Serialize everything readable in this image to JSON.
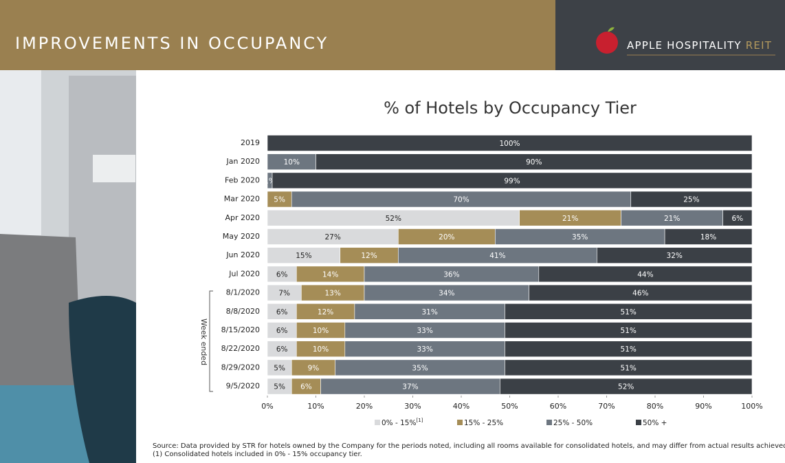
{
  "header": {
    "title": "IMPROVEMENTS IN OCCUPANCY",
    "brand": "APPLE HOSPITALITY",
    "brand_suffix": "REIT"
  },
  "chart_data": {
    "type": "stacked_bar_horizontal",
    "title": "% of Hotels by Occupancy Tier",
    "categories": [
      "2019",
      "Jan 2020",
      "Feb 2020",
      "Mar 2020",
      "Apr 2020",
      "May 2020",
      "Jun 2020",
      "Jul 2020",
      "8/1/2020",
      "8/8/2020",
      "8/15/2020",
      "8/22/2020",
      "8/29/2020",
      "9/5/2020"
    ],
    "group_label": "Week ended",
    "series": [
      {
        "name": "0% - 15%",
        "name_note": "[1]",
        "color": "#d9dadc",
        "label_color": "#222",
        "values": [
          null,
          null,
          null,
          null,
          52,
          27,
          15,
          6,
          7,
          6,
          6,
          6,
          5,
          5
        ],
        "value_labels": [
          null,
          null,
          null,
          null,
          "52%",
          "27%",
          "15%",
          "6%",
          "7%",
          "6%",
          "6%",
          "6%",
          "5%",
          "5%"
        ]
      },
      {
        "name": "15% - 25%",
        "color": "#a58d57",
        "label_color": "#fff",
        "values": [
          null,
          null,
          null,
          5,
          21,
          20,
          12,
          14,
          13,
          12,
          10,
          10,
          9,
          6
        ],
        "value_labels": [
          null,
          null,
          null,
          "5%",
          "21%",
          "20%",
          "12%",
          "14%",
          "13%",
          "12%",
          "10%",
          "10%",
          "9%",
          "6%"
        ]
      },
      {
        "name": "25% - 50%",
        "color": "#6d7680",
        "label_color": "#fff",
        "values": [
          null,
          10,
          1,
          70,
          21,
          35,
          41,
          36,
          34,
          31,
          33,
          33,
          35,
          37
        ],
        "value_labels": [
          null,
          "10%",
          "1%",
          "70%",
          "21%",
          "35%",
          "41%",
          "36%",
          "34%",
          "31%",
          "33%",
          "33%",
          "35%",
          "37%"
        ]
      },
      {
        "name": "50% +",
        "color": "#3b4046",
        "label_color": "#fff",
        "values": [
          100,
          90,
          99,
          25,
          6,
          18,
          32,
          44,
          46,
          51,
          51,
          51,
          51,
          52
        ],
        "value_labels": [
          "100%",
          "90%",
          "99%",
          "25%",
          "6%",
          "18%",
          "32%",
          "44%",
          "46%",
          "51%",
          "51%",
          "51%",
          "51%",
          "52%"
        ]
      }
    ],
    "xlim": [
      0,
      100
    ],
    "xticks": [
      {
        "value": 0,
        "label": "0%"
      },
      {
        "value": 10,
        "label": "10%"
      },
      {
        "value": 20,
        "label": "20%"
      },
      {
        "value": 30,
        "label": "30%"
      },
      {
        "value": 40,
        "label": "40%"
      },
      {
        "value": 50,
        "label": "50%"
      },
      {
        "value": 60,
        "label": "60%"
      },
      {
        "value": 70,
        "label": "70%"
      },
      {
        "value": 80,
        "label": "80%"
      },
      {
        "value": 90,
        "label": "90%"
      },
      {
        "value": 100,
        "label": "100%"
      }
    ]
  },
  "footnotes": [
    "Source:  Data provided by STR for hotels owned by the Company for the periods noted, including all rooms available for consolidated hotels, and may differ from actual results achieved.",
    "(1)   Consolidated hotels included in 0% - 15% occupancy tier."
  ]
}
